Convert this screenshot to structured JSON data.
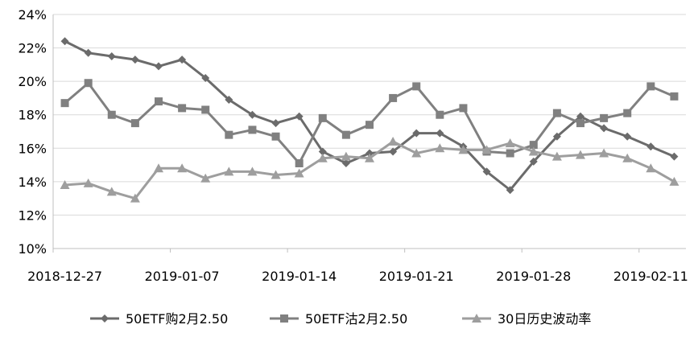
{
  "chart_data": {
    "type": "line",
    "title": "",
    "xlabel": "",
    "ylabel": "",
    "ylim": [
      0.1,
      0.24
    ],
    "y_ticks": [
      "24%",
      "22%",
      "20%",
      "18%",
      "16%",
      "14%",
      "12%",
      "10%"
    ],
    "y_tick_values": [
      0.24,
      0.22,
      0.2,
      0.18,
      0.16,
      0.14,
      0.12,
      0.1
    ],
    "x": [
      "2018-12-27",
      "2018-12-28",
      "2019-01-02",
      "2019-01-03",
      "2019-01-04",
      "2019-01-07",
      "2019-01-08",
      "2019-01-09",
      "2019-01-10",
      "2019-01-11",
      "2019-01-14",
      "2019-01-15",
      "2019-01-16",
      "2019-01-17",
      "2019-01-18",
      "2019-01-21",
      "2019-01-22",
      "2019-01-23",
      "2019-01-24",
      "2019-01-25",
      "2019-01-28",
      "2019-01-29",
      "2019-01-30",
      "2019-01-31",
      "2019-02-01",
      "2019-02-11",
      "2019-02-12"
    ],
    "x_tick_labels": [
      {
        "index": 0,
        "label": "2018-12-27"
      },
      {
        "index": 5,
        "label": "2019-01-07"
      },
      {
        "index": 10,
        "label": "2019-01-14"
      },
      {
        "index": 15,
        "label": "2019-01-21"
      },
      {
        "index": 20,
        "label": "2019-01-28"
      },
      {
        "index": 25,
        "label": "2019-02-11"
      }
    ],
    "grid": "horizontal",
    "legend_position": "bottom",
    "series": [
      {
        "name": "50ETF购2月2.50",
        "marker": "diamond",
        "color": "#6b6b6b",
        "values": [
          0.224,
          0.217,
          0.215,
          0.213,
          0.209,
          0.213,
          0.202,
          0.189,
          0.18,
          0.175,
          0.179,
          0.158,
          0.151,
          0.157,
          0.158,
          0.169,
          0.169,
          0.161,
          0.146,
          0.135,
          0.152,
          0.167,
          0.179,
          0.172,
          0.167,
          0.161,
          0.155
        ]
      },
      {
        "name": "50ETF沽2月2.50",
        "marker": "square",
        "color": "#808080",
        "values": [
          0.187,
          0.199,
          0.18,
          0.175,
          0.188,
          0.184,
          0.183,
          0.168,
          0.171,
          0.167,
          0.151,
          0.178,
          0.168,
          0.174,
          0.19,
          0.197,
          0.18,
          0.184,
          0.158,
          0.157,
          0.162,
          0.181,
          0.175,
          0.178,
          0.181,
          0.197,
          0.191
        ]
      },
      {
        "name": "30日历史波动率",
        "marker": "triangle",
        "color": "#9e9e9e",
        "values": [
          0.138,
          0.139,
          0.134,
          0.13,
          0.148,
          0.148,
          0.142,
          0.146,
          0.146,
          0.144,
          0.145,
          0.154,
          0.155,
          0.154,
          0.164,
          0.157,
          0.16,
          0.159,
          0.159,
          0.163,
          0.158,
          0.155,
          0.156,
          0.157,
          0.154,
          0.148,
          0.14
        ]
      }
    ]
  }
}
